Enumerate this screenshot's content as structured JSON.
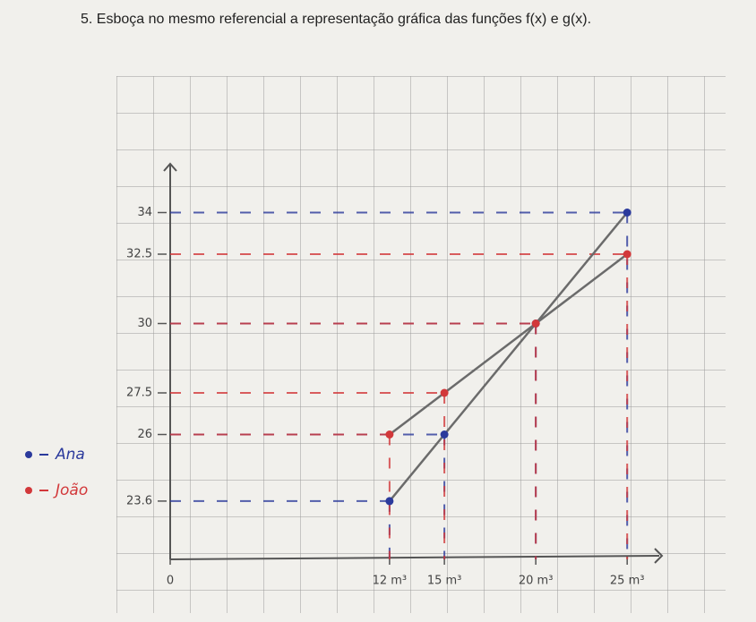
{
  "chart_data": {
    "type": "line",
    "title": "5.  Esboça no mesmo referencial a representação gráfica das funções f(x) e g(x).",
    "x": [
      12,
      15,
      20,
      25
    ],
    "series": [
      {
        "name": "Ana",
        "color": "#2b3a9c",
        "values": [
          23.6,
          26,
          30,
          34
        ]
      },
      {
        "name": "João",
        "color": "#d2383a",
        "values": [
          26,
          27.5,
          30,
          32.5
        ]
      }
    ],
    "line_color": "#6b6b6b",
    "xlim": [
      0,
      27
    ],
    "xticks": [
      0,
      {
        "value": 12,
        "label": "12 m³"
      },
      {
        "value": 15,
        "label": "15 m³"
      },
      {
        "value": 20,
        "label": "20 m³"
      },
      {
        "value": 25,
        "label": "25 m³"
      }
    ],
    "ylim": [
      21.5,
      35.5
    ],
    "yticks": [
      23.6,
      26,
      27.5,
      30,
      32.5,
      34
    ],
    "legend": "left"
  }
}
